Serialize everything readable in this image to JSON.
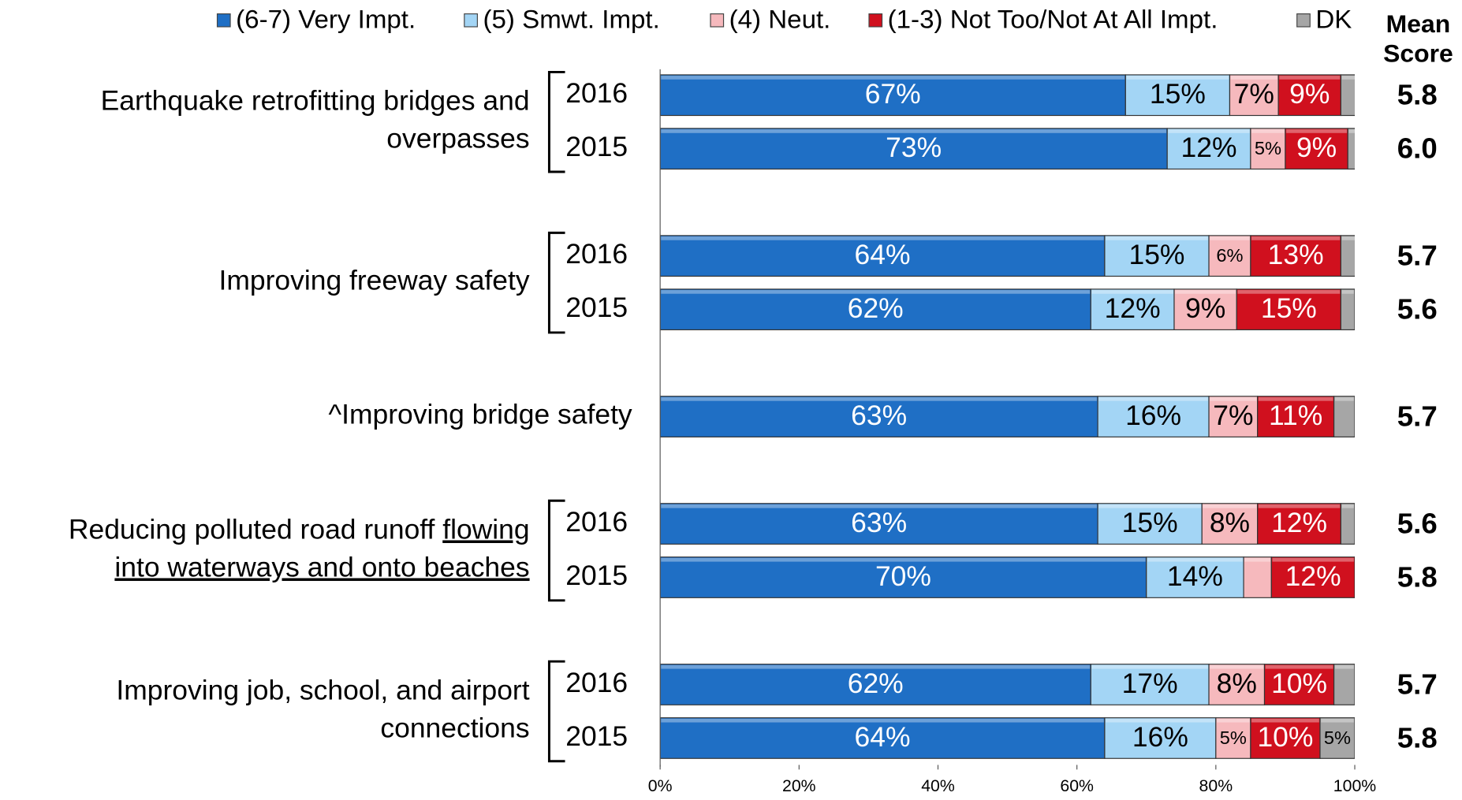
{
  "chart_data": {
    "type": "stacked_bar_horizontal",
    "groups": [
      {
        "lines": [
          [
            {
              "text": "Earthquake retrofitting bridges and"
            }
          ],
          [
            {
              "text": "overpasses"
            }
          ]
        ],
        "years": [
          "2016",
          "2015"
        ]
      },
      {
        "lines": [
          [
            {
              "text": "Improving freeway safety"
            }
          ]
        ],
        "years": [
          "2016",
          "2015"
        ]
      },
      {
        "lines": [
          [
            {
              "text": "^Improving bridge safety"
            }
          ]
        ],
        "years": [
          null
        ]
      },
      {
        "lines": [
          [
            {
              "text": "Reducing polluted road runoff "
            },
            {
              "text": "flowing",
              "underline": true
            }
          ],
          [
            {
              "text": "into waterways and onto beaches",
              "underline": true
            }
          ]
        ],
        "years": [
          "2016",
          "2015"
        ]
      },
      {
        "lines": [
          [
            {
              "text": "Improving job, school, and airport"
            }
          ],
          [
            {
              "text": "connections"
            }
          ]
        ],
        "years": [
          "2016",
          "2015"
        ]
      }
    ],
    "series": [
      {
        "name": "(6-7) Very Impt.",
        "color": "#1f6fc5",
        "label_color": "#ffffff",
        "values": [
          67,
          73,
          64,
          62,
          63,
          63,
          70,
          62,
          64
        ],
        "value_labels": [
          "67%",
          "73%",
          "64%",
          "62%",
          "63%",
          "63%",
          "70%",
          "62%",
          "64%"
        ]
      },
      {
        "name": "(5) Smwt. Impt.",
        "color": "#a3d5f5",
        "label_color": "#000000",
        "values": [
          15,
          12,
          15,
          12,
          16,
          15,
          14,
          17,
          16
        ],
        "value_labels": [
          "15%",
          "12%",
          "15%",
          "12%",
          "16%",
          "15%",
          "14%",
          "17%",
          "16%"
        ]
      },
      {
        "name": "(4) Neut.",
        "color": "#f6b9bd",
        "label_color": "#000000",
        "values": [
          7,
          5,
          6,
          9,
          7,
          8,
          4,
          8,
          5
        ],
        "value_labels": [
          "7%",
          "5%",
          "6%",
          "9%",
          "7%",
          "8%",
          null,
          "8%",
          "5%"
        ]
      },
      {
        "name": "(1-3) Not Too/Not At All Impt.",
        "color": "#d0101e",
        "label_color": "#ffffff",
        "values": [
          9,
          9,
          13,
          15,
          11,
          12,
          12,
          10,
          10
        ],
        "value_labels": [
          "9%",
          "9%",
          "13%",
          "15%",
          "11%",
          "12%",
          "12%",
          "10%",
          "10%"
        ]
      },
      {
        "name": "DK",
        "color": "#a6a6a6",
        "label_color": "#000000",
        "values": [
          3,
          2,
          3,
          2,
          3,
          2,
          1,
          3,
          5
        ],
        "value_labels": [
          null,
          null,
          null,
          null,
          null,
          null,
          null,
          null,
          "5%"
        ]
      }
    ],
    "mean_score": {
      "title": [
        "Mean",
        "Score"
      ],
      "values": [
        5.8,
        6.0,
        5.7,
        5.6,
        5.7,
        5.6,
        5.8,
        5.7,
        5.8
      ],
      "value_labels": [
        "5.8",
        "6.0",
        "5.7",
        "5.6",
        "5.7",
        "5.6",
        "5.8",
        "5.7",
        "5.8"
      ]
    },
    "xlim": [
      0,
      100
    ],
    "xticks": [
      {
        "value": 0,
        "label": "0%"
      },
      {
        "value": 20,
        "label": "20%"
      },
      {
        "value": 40,
        "label": "40%"
      },
      {
        "value": 60,
        "label": "60%"
      },
      {
        "value": 80,
        "label": "80%"
      },
      {
        "value": 100,
        "label": "100%"
      }
    ],
    "legend": "top"
  }
}
